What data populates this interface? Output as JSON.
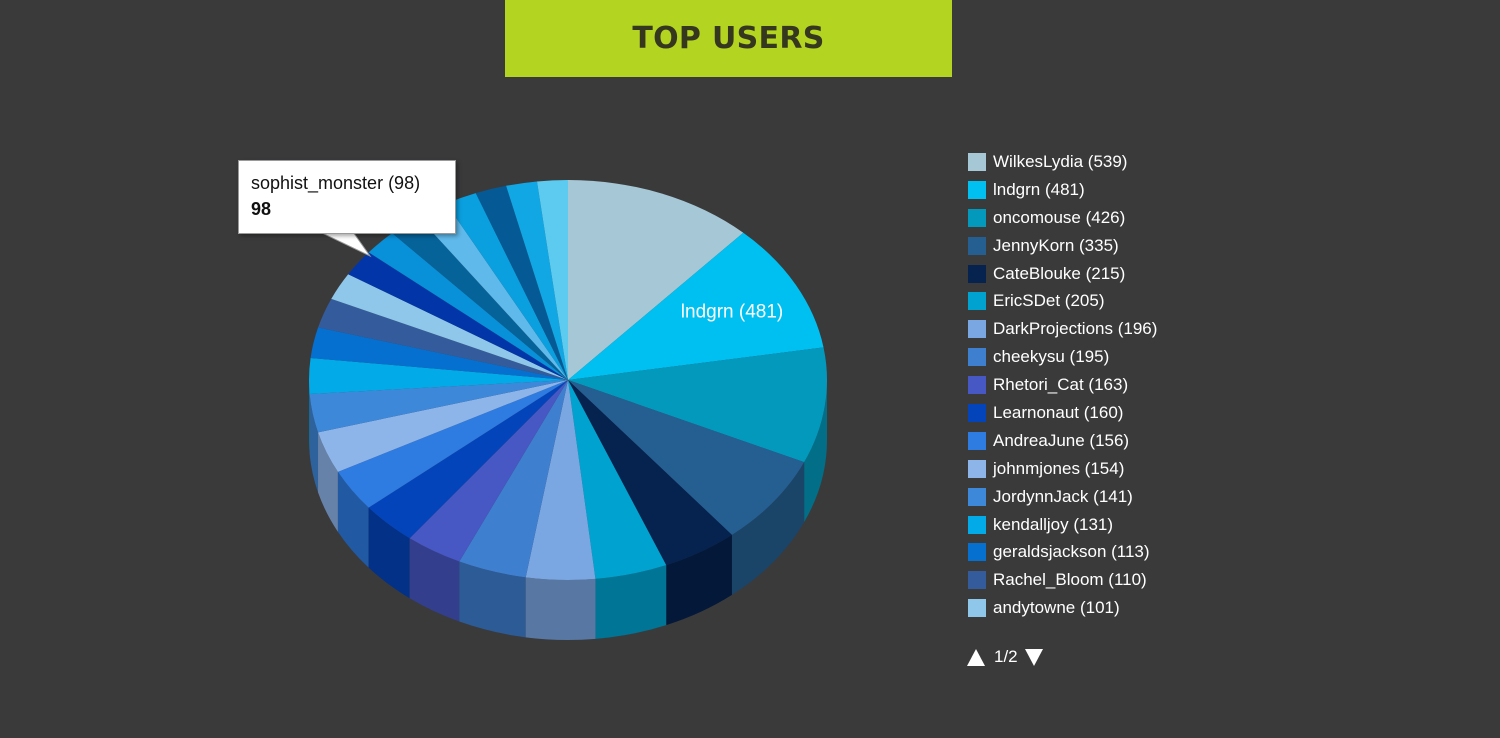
{
  "header": {
    "title": "TOP USERS"
  },
  "colors": {
    "background": "#3a3a3b",
    "title_bar": "#b3d420",
    "title_text": "#35381e"
  },
  "chart_data": {
    "type": "pie",
    "title": "TOP USERS",
    "style": "3d-pie",
    "legend_position": "right",
    "slices": [
      {
        "label": "WilkesLydia (539)",
        "value": 539,
        "color": "#a6c8d6"
      },
      {
        "label": "lndgrn (481)",
        "value": 481,
        "color": "#00c0f2"
      },
      {
        "label": "oncomouse (426)",
        "value": 426,
        "color": "#0399bd"
      },
      {
        "label": "JennyKorn (335)",
        "value": 335,
        "color": "#255f92"
      },
      {
        "label": "CateBlouke (215)",
        "value": 215,
        "color": "#06224f"
      },
      {
        "label": "EricSDet (205)",
        "value": 205,
        "color": "#00a2cf"
      },
      {
        "label": "DarkProjections (196)",
        "value": 196,
        "color": "#7aa6e2"
      },
      {
        "label": "cheekysu (195)",
        "value": 195,
        "color": "#3f7fd0"
      },
      {
        "label": "Rhetori_Cat (163)",
        "value": 163,
        "color": "#4757c4"
      },
      {
        "label": "Learnonaut (160)",
        "value": 160,
        "color": "#0344bb"
      },
      {
        "label": "AndreaJune (156)",
        "value": 156,
        "color": "#2e7be1"
      },
      {
        "label": "johnmjones (154)",
        "value": 154,
        "color": "#8db5ea"
      },
      {
        "label": "JordynnJack (141)",
        "value": 141,
        "color": "#3e88d9"
      },
      {
        "label": "kendalljoy (131)",
        "value": 131,
        "color": "#03aae8"
      },
      {
        "label": "geraldsjackson (113)",
        "value": 113,
        "color": "#0570cf"
      },
      {
        "label": "Rachel_Bloom (110)",
        "value": 110,
        "color": "#345c9c"
      },
      {
        "label": "andytowne (101)",
        "value": 101,
        "color": "#8ec7ea"
      },
      {
        "label": "sophist_monster (98)",
        "value": 98,
        "color": "#0236a8"
      },
      {
        "label": "",
        "value": 96,
        "color": "#0890d8"
      },
      {
        "label": "",
        "value": 94,
        "color": "#06639a"
      },
      {
        "label": "",
        "value": 92,
        "color": "#5fb9ea"
      },
      {
        "label": "",
        "value": 91,
        "color": "#0aa0e0"
      },
      {
        "label": "",
        "value": 89,
        "color": "#055a95"
      },
      {
        "label": "",
        "value": 88,
        "color": "#11a7e4"
      },
      {
        "label": "",
        "value": 87,
        "color": "#5ccbef"
      }
    ],
    "data_labels": [
      {
        "slice": 1,
        "text": "lndgrn (481)"
      }
    ],
    "legend_page": "1/2",
    "tooltip": {
      "title": "sophist_monster (98)",
      "value": "98"
    }
  }
}
